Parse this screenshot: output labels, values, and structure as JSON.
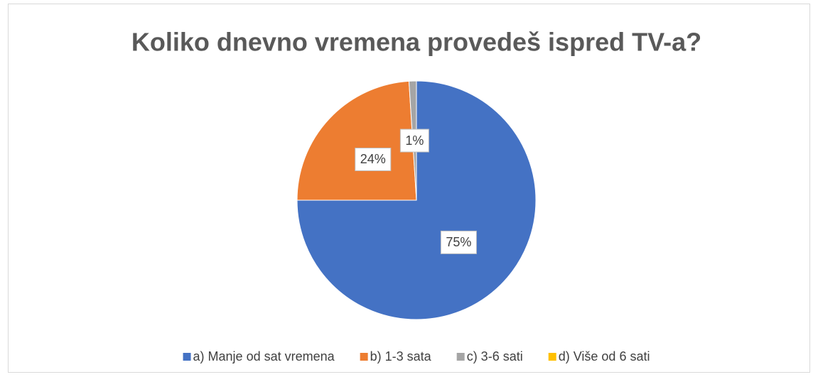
{
  "chart_data": {
    "type": "pie",
    "title": "Koliko dnevno vremena provedeš ispred TV-a?",
    "categories": [
      "a) Manje od sat vremena",
      "b) 1-3 sata",
      "c) 3-6 sati",
      "d) Više od 6 sati"
    ],
    "values": [
      75,
      24,
      1,
      0
    ],
    "value_labels": [
      "75%",
      "24%",
      "1%",
      null
    ],
    "colors": [
      "#4472c4",
      "#ed7d31",
      "#a5a5a5",
      "#ffc000"
    ],
    "legend": "bottom"
  }
}
